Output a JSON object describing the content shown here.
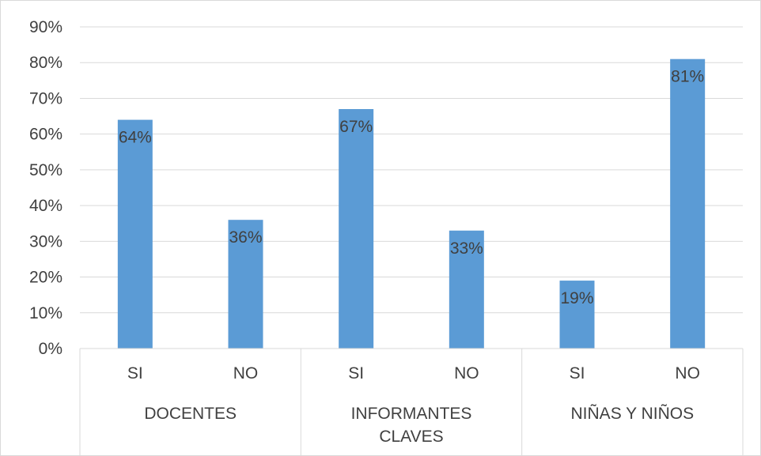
{
  "chart_data": {
    "type": "bar",
    "groups": [
      {
        "name": "DOCENTES",
        "lines": [
          "DOCENTES"
        ]
      },
      {
        "name": "INFORMANTES CLAVES",
        "lines": [
          "INFORMANTES",
          "CLAVES"
        ]
      },
      {
        "name": "NIÑAS Y NIÑOS",
        "lines": [
          "NIÑAS Y NIÑOS"
        ]
      }
    ],
    "categories": [
      "SI",
      "NO",
      "SI",
      "NO",
      "SI",
      "NO"
    ],
    "values": [
      64,
      36,
      67,
      33,
      19,
      81
    ],
    "data_labels": [
      "64%",
      "36%",
      "67%",
      "33%",
      "19%",
      "81%"
    ],
    "ylim": [
      0,
      90
    ],
    "yticks": [
      0,
      10,
      20,
      30,
      40,
      50,
      60,
      70,
      80,
      90
    ],
    "ytick_labels": [
      "0%",
      "10%",
      "20%",
      "30%",
      "40%",
      "50%",
      "60%",
      "70%",
      "80%",
      "90%"
    ],
    "grid": true,
    "legend": "none",
    "bar_color": "#5b9bd5",
    "grid_color": "#d9d9d9",
    "text_color": "#404040"
  }
}
